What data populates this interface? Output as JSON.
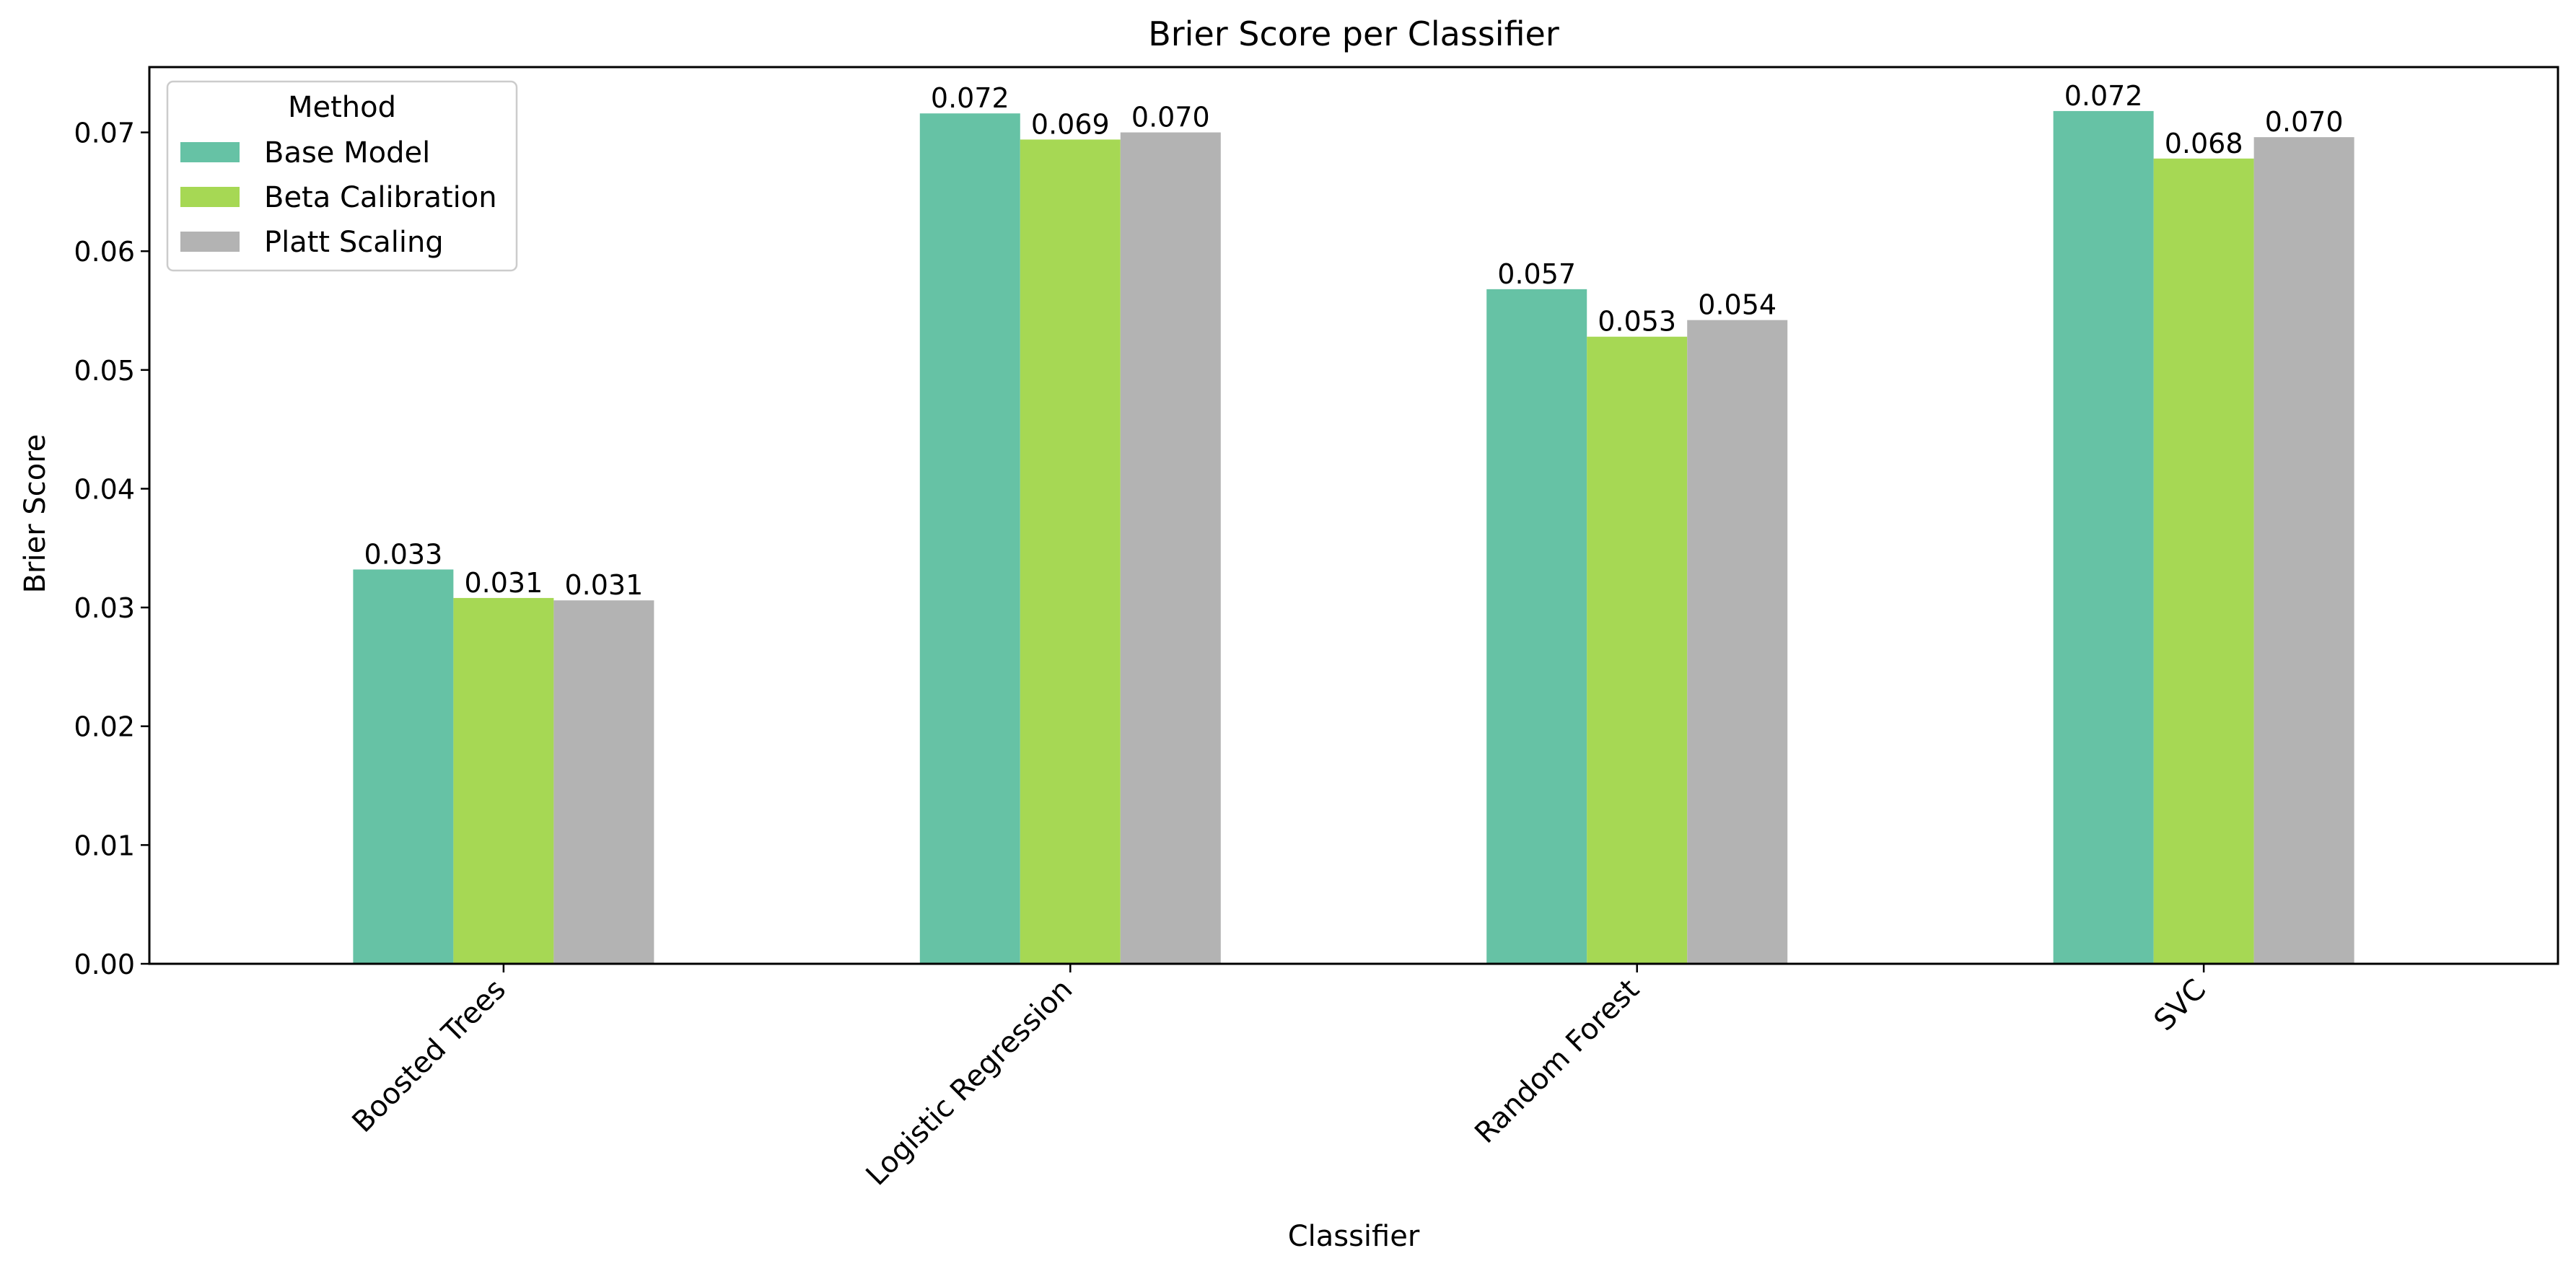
{
  "chart_data": {
    "type": "bar",
    "title": "Brier Score per Classifier",
    "xlabel": "Classifier",
    "ylabel": "Brier Score",
    "categories": [
      "Boosted Trees",
      "Logistic Regression",
      "Random Forest",
      "SVC"
    ],
    "series": [
      {
        "name": "Base Model",
        "color": "#66c2a5",
        "values": [
          0.0332,
          0.0716,
          0.0568,
          0.0718
        ],
        "labels": [
          "0.033",
          "0.072",
          "0.057",
          "0.072"
        ]
      },
      {
        "name": "Beta Calibration",
        "color": "#a6d854",
        "values": [
          0.0308,
          0.0694,
          0.0528,
          0.0678
        ],
        "labels": [
          "0.031",
          "0.069",
          "0.053",
          "0.068"
        ]
      },
      {
        "name": "Platt Scaling",
        "color": "#b3b3b3",
        "values": [
          0.0306,
          0.07,
          0.0542,
          0.0696
        ],
        "labels": [
          "0.031",
          "0.070",
          "0.054",
          "0.070"
        ]
      }
    ],
    "ylim": [
      0,
      0.0755
    ],
    "yticks": [
      "0.00",
      "0.01",
      "0.02",
      "0.03",
      "0.04",
      "0.05",
      "0.06",
      "0.07"
    ],
    "ytick_values": [
      0,
      0.01,
      0.02,
      0.03,
      0.04,
      0.05,
      0.06,
      0.07
    ],
    "grid": false,
    "legend": {
      "title": "Method",
      "placement": "upper-left"
    }
  }
}
